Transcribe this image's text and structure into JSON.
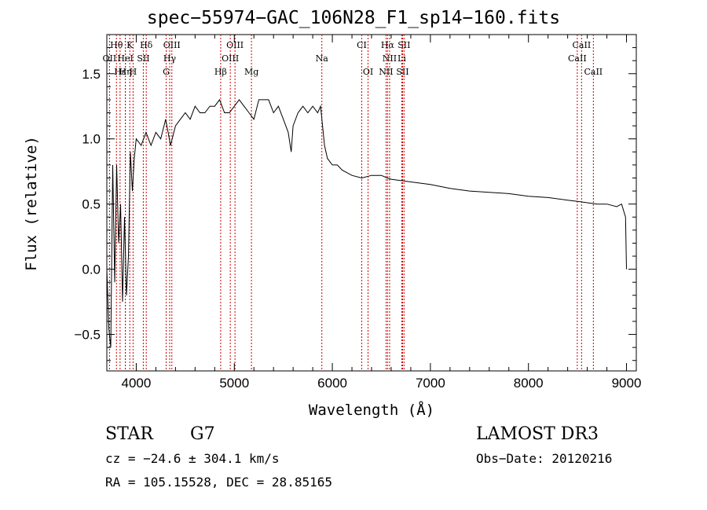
{
  "chart_data": {
    "type": "line",
    "title": "spec−55974−GAC_106N28_F1_sp14−160.fits",
    "xlabel": "Wavelength (Å)",
    "ylabel": "Flux (relative)",
    "xlim": [
      3700,
      9100
    ],
    "ylim": [
      -0.78,
      1.8
    ],
    "x_ticks": [
      4000,
      5000,
      6000,
      7000,
      8000,
      9000
    ],
    "y_ticks": [
      -0.5,
      0.0,
      0.5,
      1.0,
      1.5
    ],
    "y_tick_labels": [
      "−0.5",
      "0.0",
      "0.5",
      "1.0",
      "1.5"
    ],
    "line_color": "#000000",
    "marker_color": "#cc0000",
    "series": [
      {
        "name": "flux",
        "x": [
          3700,
          3720,
          3740,
          3760,
          3780,
          3800,
          3820,
          3840,
          3860,
          3880,
          3900,
          3920,
          3940,
          3960,
          3980,
          4000,
          4050,
          4100,
          4150,
          4200,
          4250,
          4300,
          4350,
          4400,
          4450,
          4500,
          4550,
          4600,
          4650,
          4700,
          4750,
          4800,
          4850,
          4900,
          4950,
          5000,
          5050,
          5100,
          5150,
          5200,
          5250,
          5300,
          5350,
          5400,
          5450,
          5500,
          5550,
          5580,
          5600,
          5650,
          5700,
          5750,
          5800,
          5850,
          5880,
          5900,
          5920,
          5950,
          6000,
          6050,
          6100,
          6150,
          6200,
          6300,
          6400,
          6500,
          6560,
          6600,
          6700,
          6800,
          6900,
          7000,
          7200,
          7400,
          7600,
          7800,
          8000,
          8200,
          8400,
          8500,
          8600,
          8700,
          8800,
          8900,
          8950,
          8990,
          9000
        ],
        "y": [
          0.0,
          -0.45,
          -0.6,
          0.8,
          -0.1,
          0.8,
          0.2,
          0.5,
          -0.25,
          0.4,
          -0.2,
          0.1,
          0.9,
          0.6,
          0.85,
          1.0,
          0.95,
          1.05,
          0.95,
          1.05,
          1.0,
          1.15,
          0.95,
          1.1,
          1.15,
          1.2,
          1.15,
          1.25,
          1.2,
          1.2,
          1.25,
          1.25,
          1.3,
          1.2,
          1.2,
          1.25,
          1.3,
          1.25,
          1.2,
          1.15,
          1.3,
          1.3,
          1.3,
          1.2,
          1.25,
          1.15,
          1.05,
          0.9,
          1.1,
          1.2,
          1.25,
          1.2,
          1.25,
          1.2,
          1.25,
          1.1,
          0.95,
          0.85,
          0.8,
          0.8,
          0.76,
          0.74,
          0.72,
          0.7,
          0.72,
          0.72,
          0.7,
          0.69,
          0.68,
          0.67,
          0.66,
          0.65,
          0.62,
          0.6,
          0.59,
          0.58,
          0.56,
          0.55,
          0.53,
          0.52,
          0.51,
          0.5,
          0.5,
          0.48,
          0.5,
          0.4,
          0.0
        ]
      }
    ],
    "line_markers": [
      {
        "label": "Hθ",
        "x": 3798,
        "row": 0
      },
      {
        "label": "K",
        "x": 3934,
        "row": 0
      },
      {
        "label": "Hδ",
        "x": 4102,
        "row": 0
      },
      {
        "label": "OIII",
        "x": 4363,
        "row": 0
      },
      {
        "label": "OIII",
        "x": 5007,
        "row": 0
      },
      {
        "label": "CI",
        "x": 6300,
        "row": 0
      },
      {
        "label": "Hα",
        "x": 6563,
        "row": 0
      },
      {
        "label": "SII",
        "x": 6731,
        "row": 0
      },
      {
        "label": "CaII",
        "x": 8542,
        "row": 0
      },
      {
        "label": "OII",
        "x": 3727,
        "row": 1
      },
      {
        "label": "HeI",
        "x": 3889,
        "row": 1
      },
      {
        "label": "SII",
        "x": 4072,
        "row": 1
      },
      {
        "label": "Hγ",
        "x": 4341,
        "row": 1
      },
      {
        "label": "OIII",
        "x": 4959,
        "row": 1
      },
      {
        "label": "Na",
        "x": 5893,
        "row": 1
      },
      {
        "label": "NII",
        "x": 6584,
        "row": 1
      },
      {
        "label": "Li",
        "x": 6708,
        "row": 1
      },
      {
        "label": "CaII",
        "x": 8498,
        "row": 1
      },
      {
        "label": "Hε",
        "x": 3835,
        "row": 2
      },
      {
        "label": "Hη",
        "x": 3889,
        "row": 2
      },
      {
        "label": "H",
        "x": 3968,
        "row": 2
      },
      {
        "label": "G",
        "x": 4305,
        "row": 2
      },
      {
        "label": "Hβ",
        "x": 4861,
        "row": 2
      },
      {
        "label": "Mg",
        "x": 5175,
        "row": 2
      },
      {
        "label": "OI",
        "x": 6364,
        "row": 2
      },
      {
        "label": "NII",
        "x": 6548,
        "row": 2
      },
      {
        "label": "SII",
        "x": 6716,
        "row": 2
      },
      {
        "label": "CaII",
        "x": 8662,
        "row": 2
      }
    ]
  },
  "info": {
    "object_type": "STAR",
    "subclass": "G7",
    "survey": "LAMOST DR3",
    "redshift_line": "cz = −24.6 ± 304.1 km/s",
    "obs_date": "Obs−Date: 20120216",
    "coords": "RA = 105.15528, DEC =  28.85165"
  }
}
